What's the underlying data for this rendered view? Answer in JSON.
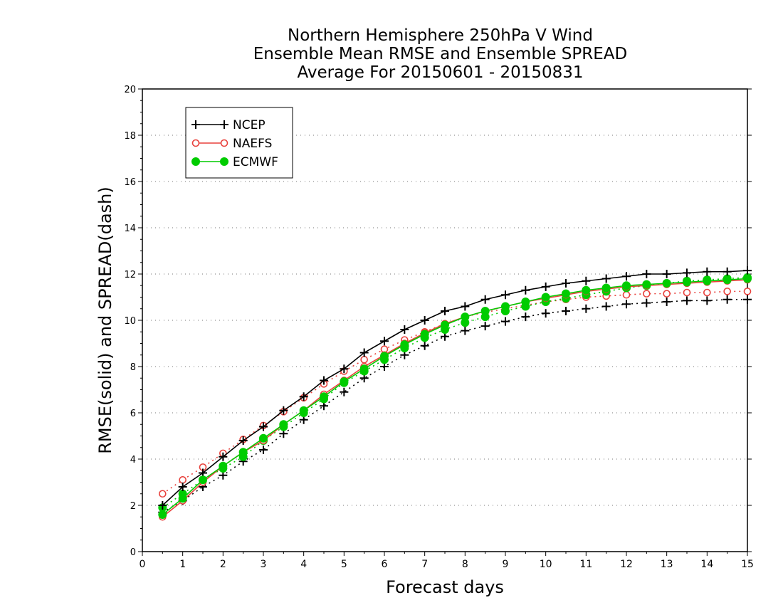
{
  "title_lines": [
    "Northern Hemisphere 250hPa V Wind",
    "Ensemble Mean RMSE and Ensemble SPREAD",
    "Average For 20150601 - 20150831"
  ],
  "chart_data": {
    "type": "line",
    "xlabel": "Forecast days",
    "ylabel": "RMSE(solid) and SPREAD(dash)",
    "xlim": [
      0,
      15
    ],
    "ylim": [
      0,
      20
    ],
    "xticks": [
      0,
      1,
      2,
      3,
      4,
      5,
      6,
      7,
      8,
      9,
      10,
      11,
      12,
      13,
      14,
      15
    ],
    "yticks": [
      0,
      2,
      4,
      6,
      8,
      10,
      12,
      14,
      16,
      18,
      20
    ],
    "grid": "horizontal dotted",
    "legend_position": "top-left",
    "x": [
      0.5,
      1,
      1.5,
      2,
      2.5,
      3,
      3.5,
      4,
      4.5,
      5,
      5.5,
      6,
      6.5,
      7,
      7.5,
      8,
      8.5,
      9,
      9.5,
      10,
      10.5,
      11,
      11.5,
      12,
      12.5,
      13,
      13.5,
      14,
      14.5,
      15
    ],
    "series": [
      {
        "name": "NCEP",
        "color": "#000000",
        "marker": "plus",
        "rmse": [
          2.0,
          2.8,
          3.4,
          4.1,
          4.8,
          5.4,
          6.1,
          6.7,
          7.4,
          7.9,
          8.6,
          9.1,
          9.6,
          10.0,
          10.4,
          10.6,
          10.9,
          11.1,
          11.3,
          11.45,
          11.6,
          11.7,
          11.8,
          11.9,
          12.0,
          12.0,
          12.05,
          12.1,
          12.1,
          12.15
        ],
        "spread": [
          1.7,
          2.2,
          2.8,
          3.3,
          3.9,
          4.4,
          5.1,
          5.7,
          6.3,
          6.9,
          7.5,
          8.0,
          8.5,
          8.9,
          9.3,
          9.55,
          9.75,
          9.95,
          10.15,
          10.3,
          10.4,
          10.5,
          10.6,
          10.7,
          10.75,
          10.8,
          10.85,
          10.85,
          10.9,
          10.9
        ]
      },
      {
        "name": "NAEFS",
        "color": "#e8413c",
        "marker": "circle",
        "rmse": [
          1.5,
          2.2,
          3.0,
          3.7,
          4.3,
          4.8,
          5.5,
          6.1,
          6.8,
          7.4,
          8.0,
          8.5,
          9.0,
          9.45,
          9.85,
          10.15,
          10.4,
          10.6,
          10.8,
          10.95,
          11.1,
          11.25,
          11.35,
          11.45,
          11.5,
          11.55,
          11.6,
          11.65,
          11.7,
          11.75
        ],
        "spread": [
          2.5,
          3.1,
          3.65,
          4.25,
          4.85,
          5.45,
          6.05,
          6.65,
          7.25,
          7.8,
          8.3,
          8.75,
          9.15,
          9.5,
          9.85,
          10.15,
          10.35,
          10.5,
          10.65,
          10.8,
          10.9,
          11.0,
          11.05,
          11.1,
          11.15,
          11.15,
          11.2,
          11.2,
          11.25,
          11.25
        ]
      },
      {
        "name": "ECMWF",
        "color": "#00cc00",
        "marker": "dot",
        "rmse": [
          1.6,
          2.3,
          3.1,
          3.7,
          4.3,
          4.9,
          5.5,
          6.1,
          6.7,
          7.35,
          7.9,
          8.45,
          8.95,
          9.4,
          9.8,
          10.15,
          10.4,
          10.6,
          10.8,
          11.0,
          11.15,
          11.3,
          11.4,
          11.5,
          11.55,
          11.6,
          11.65,
          11.7,
          11.75,
          11.8
        ],
        "spread": [
          1.9,
          2.5,
          3.1,
          3.6,
          4.1,
          4.8,
          5.4,
          6.0,
          6.6,
          7.3,
          7.8,
          8.3,
          8.8,
          9.25,
          9.6,
          9.9,
          10.15,
          10.4,
          10.6,
          10.8,
          10.95,
          11.1,
          11.25,
          11.4,
          11.5,
          11.6,
          11.7,
          11.75,
          11.8,
          11.85
        ]
      }
    ]
  }
}
